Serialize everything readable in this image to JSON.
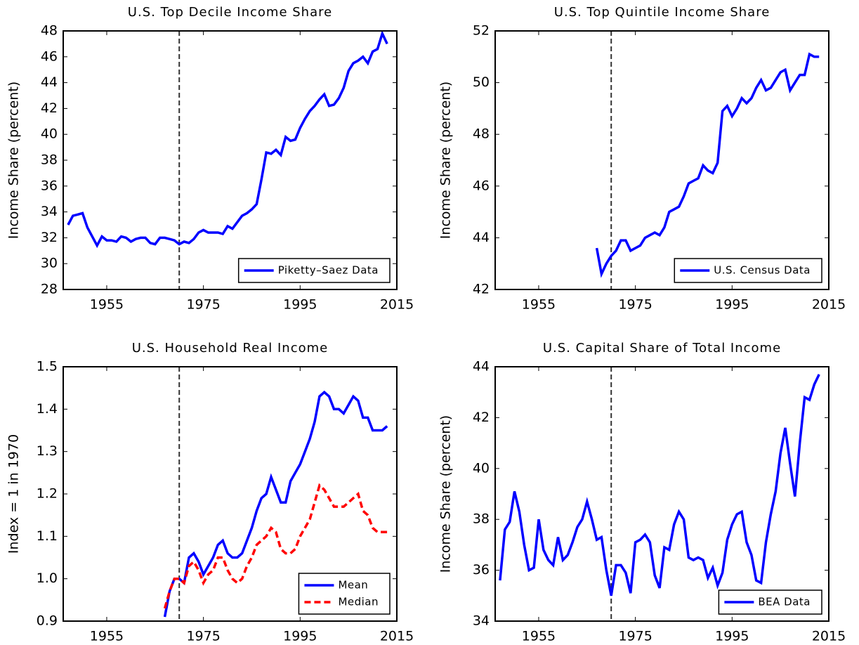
{
  "chart_data": [
    {
      "type": "line",
      "title": "U.S. Top Decile Income Share",
      "ylabel": "Income Share (percent)",
      "x": [
        1947,
        1948,
        1949,
        1950,
        1951,
        1952,
        1953,
        1954,
        1955,
        1956,
        1957,
        1958,
        1959,
        1960,
        1961,
        1962,
        1963,
        1964,
        1965,
        1966,
        1967,
        1968,
        1969,
        1970,
        1971,
        1972,
        1973,
        1974,
        1975,
        1976,
        1977,
        1978,
        1979,
        1980,
        1981,
        1982,
        1983,
        1984,
        1985,
        1986,
        1987,
        1988,
        1989,
        1990,
        1991,
        1992,
        1993,
        1994,
        1995,
        1996,
        1997,
        1998,
        1999,
        2000,
        2001,
        2002,
        2003,
        2004,
        2005,
        2006,
        2007,
        2008,
        2009,
        2010,
        2011,
        2012,
        2013
      ],
      "series": [
        {
          "name": "Piketty–Saez Data",
          "color": "#0000ff",
          "dashed": false,
          "values": [
            33.0,
            33.7,
            33.8,
            33.9,
            32.8,
            32.1,
            31.4,
            32.1,
            31.8,
            31.8,
            31.7,
            32.1,
            32.0,
            31.7,
            31.9,
            32.0,
            32.0,
            31.6,
            31.5,
            32.0,
            32.0,
            31.9,
            31.8,
            31.5,
            31.7,
            31.6,
            31.9,
            32.4,
            32.6,
            32.4,
            32.4,
            32.4,
            32.3,
            32.9,
            32.7,
            33.2,
            33.7,
            33.9,
            34.2,
            34.6,
            36.5,
            38.6,
            38.5,
            38.8,
            38.4,
            39.8,
            39.5,
            39.6,
            40.5,
            41.2,
            41.8,
            42.2,
            42.7,
            43.1,
            42.2,
            42.3,
            42.8,
            43.6,
            44.9,
            45.5,
            45.7,
            46.0,
            45.5,
            46.4,
            46.6,
            47.8,
            47.0
          ]
        }
      ],
      "xlim": [
        1946,
        2015
      ],
      "xticks": [
        1955,
        1975,
        1995,
        2015
      ],
      "ylim": [
        28,
        48
      ],
      "yticks": [
        28,
        30,
        32,
        34,
        36,
        38,
        40,
        42,
        44,
        46,
        48
      ],
      "vline": 1970,
      "legend": "lower right"
    },
    {
      "type": "line",
      "title": "U.S. Top Quintile Income Share",
      "ylabel": "Income Share (percent)",
      "x": [
        1967,
        1968,
        1969,
        1970,
        1971,
        1972,
        1973,
        1974,
        1975,
        1976,
        1977,
        1978,
        1979,
        1980,
        1981,
        1982,
        1983,
        1984,
        1985,
        1986,
        1987,
        1988,
        1989,
        1990,
        1991,
        1992,
        1993,
        1994,
        1995,
        1996,
        1997,
        1998,
        1999,
        2000,
        2001,
        2002,
        2003,
        2004,
        2005,
        2006,
        2007,
        2008,
        2009,
        2010,
        2011,
        2012,
        2013
      ],
      "series": [
        {
          "name": "U.S. Census Data",
          "color": "#0000ff",
          "dashed": false,
          "values": [
            43.6,
            42.6,
            43.0,
            43.3,
            43.5,
            43.9,
            43.9,
            43.5,
            43.6,
            43.7,
            44.0,
            44.1,
            44.2,
            44.1,
            44.4,
            45.0,
            45.1,
            45.2,
            45.6,
            46.1,
            46.2,
            46.3,
            46.8,
            46.6,
            46.5,
            46.9,
            48.9,
            49.1,
            48.7,
            49.0,
            49.4,
            49.2,
            49.4,
            49.8,
            50.1,
            49.7,
            49.8,
            50.1,
            50.4,
            50.5,
            49.7,
            50.0,
            50.3,
            50.3,
            51.1,
            51.0,
            51.0
          ]
        }
      ],
      "xlim": [
        1946,
        2015
      ],
      "xticks": [
        1955,
        1975,
        1995,
        2015
      ],
      "ylim": [
        42,
        52
      ],
      "yticks": [
        42,
        44,
        46,
        48,
        50,
        52
      ],
      "vline": 1970,
      "legend": "lower right"
    },
    {
      "type": "line",
      "title": "U.S. Household Real Income",
      "ylabel": "Index = 1 in 1970",
      "x": [
        1967,
        1968,
        1969,
        1970,
        1971,
        1972,
        1973,
        1974,
        1975,
        1976,
        1977,
        1978,
        1979,
        1980,
        1981,
        1982,
        1983,
        1984,
        1985,
        1986,
        1987,
        1988,
        1989,
        1990,
        1991,
        1992,
        1993,
        1994,
        1995,
        1996,
        1997,
        1998,
        1999,
        2000,
        2001,
        2002,
        2003,
        2004,
        2005,
        2006,
        2007,
        2008,
        2009,
        2010,
        2011,
        2012,
        2013
      ],
      "series": [
        {
          "name": "Mean",
          "color": "#0000ff",
          "dashed": false,
          "values": [
            0.91,
            0.97,
            1.0,
            1.0,
            0.99,
            1.05,
            1.06,
            1.04,
            1.01,
            1.03,
            1.05,
            1.08,
            1.09,
            1.06,
            1.05,
            1.05,
            1.06,
            1.09,
            1.12,
            1.16,
            1.19,
            1.2,
            1.24,
            1.21,
            1.18,
            1.18,
            1.23,
            1.25,
            1.27,
            1.3,
            1.33,
            1.37,
            1.43,
            1.44,
            1.43,
            1.4,
            1.4,
            1.39,
            1.41,
            1.43,
            1.42,
            1.38,
            1.38,
            1.35,
            1.35,
            1.35,
            1.36
          ]
        },
        {
          "name": "Median",
          "color": "#ff0000",
          "dashed": true,
          "values": [
            0.93,
            0.97,
            1.0,
            1.0,
            0.99,
            1.03,
            1.04,
            1.02,
            0.99,
            1.01,
            1.02,
            1.05,
            1.05,
            1.02,
            1.0,
            0.99,
            1.0,
            1.03,
            1.05,
            1.08,
            1.09,
            1.1,
            1.12,
            1.11,
            1.07,
            1.06,
            1.06,
            1.07,
            1.1,
            1.12,
            1.14,
            1.18,
            1.22,
            1.21,
            1.19,
            1.17,
            1.17,
            1.17,
            1.18,
            1.19,
            1.2,
            1.16,
            1.15,
            1.12,
            1.11,
            1.11,
            1.11
          ]
        }
      ],
      "xlim": [
        1946,
        2015
      ],
      "xticks": [
        1955,
        1975,
        1995,
        2015
      ],
      "ylim": [
        0.9,
        1.5
      ],
      "yticks": [
        0.9,
        {
          "value": 1,
          "label": "1.0"
        },
        1.1,
        1.2,
        1.3,
        1.4,
        1.5
      ],
      "vline": 1970,
      "legend": "lower right"
    },
    {
      "type": "line",
      "title": "U.S. Capital Share of Total Income",
      "ylabel": "Income Share (percent)",
      "x": [
        1947,
        1948,
        1949,
        1950,
        1951,
        1952,
        1953,
        1954,
        1955,
        1956,
        1957,
        1958,
        1959,
        1960,
        1961,
        1962,
        1963,
        1964,
        1965,
        1966,
        1967,
        1968,
        1969,
        1970,
        1971,
        1972,
        1973,
        1974,
        1975,
        1976,
        1977,
        1978,
        1979,
        1980,
        1981,
        1982,
        1983,
        1984,
        1985,
        1986,
        1987,
        1988,
        1989,
        1990,
        1991,
        1992,
        1993,
        1994,
        1995,
        1996,
        1997,
        1998,
        1999,
        2000,
        2001,
        2002,
        2003,
        2004,
        2005,
        2006,
        2007,
        2008,
        2009,
        2010,
        2011,
        2012,
        2013
      ],
      "series": [
        {
          "name": "BEA Data",
          "color": "#0000ff",
          "dashed": false,
          "values": [
            35.6,
            37.6,
            37.9,
            39.1,
            38.3,
            37.0,
            36.0,
            36.1,
            38.0,
            36.8,
            36.4,
            36.2,
            37.3,
            36.4,
            36.6,
            37.1,
            37.7,
            38.0,
            38.7,
            38.0,
            37.2,
            37.3,
            36.0,
            35.0,
            36.2,
            36.2,
            35.9,
            35.1,
            37.1,
            37.2,
            37.4,
            37.1,
            35.8,
            35.3,
            36.9,
            36.8,
            37.8,
            38.3,
            38.0,
            36.5,
            36.4,
            36.5,
            36.4,
            35.7,
            36.1,
            35.4,
            35.9,
            37.2,
            37.8,
            38.2,
            38.3,
            37.1,
            36.6,
            35.6,
            35.5,
            37.1,
            38.2,
            39.1,
            40.6,
            41.6,
            40.2,
            38.9,
            41.0,
            42.8,
            42.7,
            43.3,
            43.7
          ]
        }
      ],
      "xlim": [
        1946,
        2015
      ],
      "xticks": [
        1955,
        1975,
        1995,
        2015
      ],
      "ylim": [
        34,
        44
      ],
      "yticks": [
        34,
        36,
        38,
        40,
        42,
        44
      ],
      "vline": 1970,
      "legend": "lower right"
    }
  ]
}
